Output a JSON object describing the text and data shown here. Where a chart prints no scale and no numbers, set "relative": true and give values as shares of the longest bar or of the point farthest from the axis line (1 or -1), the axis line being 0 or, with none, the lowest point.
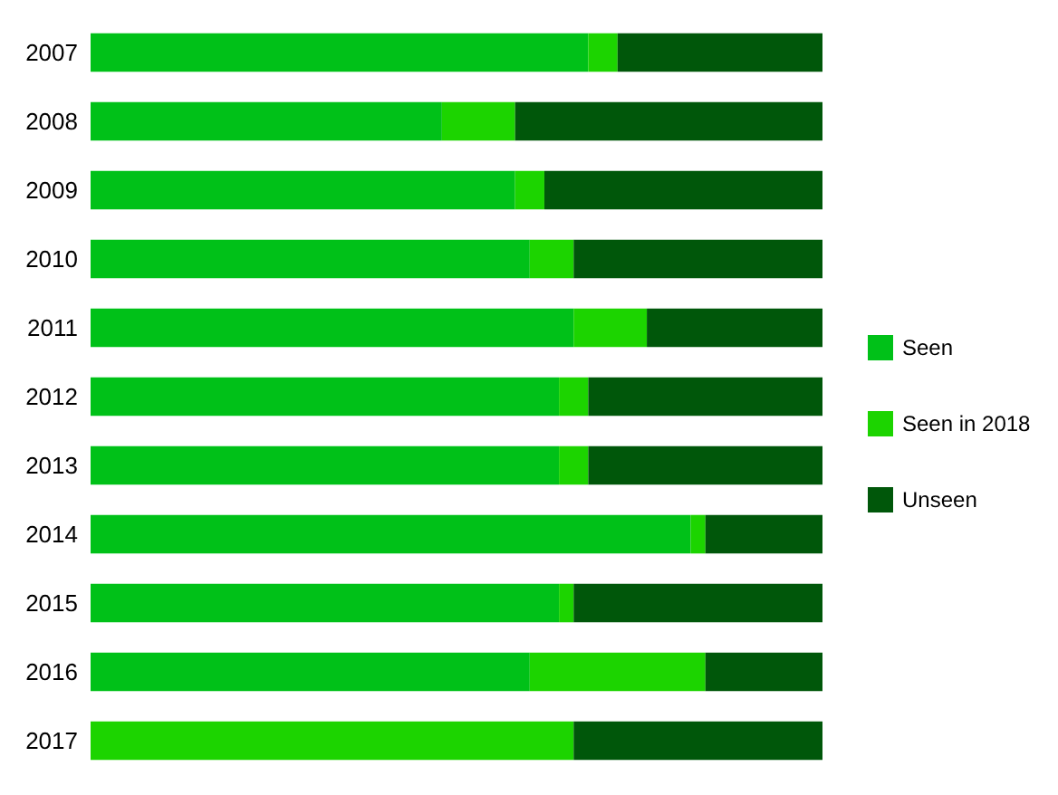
{
  "chart_data": {
    "type": "bar",
    "orientation": "horizontal",
    "stacked": true,
    "relative": true,
    "legend": "right",
    "categories": [
      "2007",
      "2008",
      "2009",
      "2010",
      "2011",
      "2012",
      "2013",
      "2014",
      "2015",
      "2016",
      "2017"
    ],
    "series": [
      {
        "name": "Seen",
        "color": "#00c118",
        "values": [
          0.68,
          0.48,
          0.58,
          0.6,
          0.66,
          0.64,
          0.64,
          0.82,
          0.64,
          0.6,
          0
        ]
      },
      {
        "name": "Seen in 2018",
        "color": "#1cd400",
        "values": [
          0.04,
          0.1,
          0.04,
          0.06,
          0.1,
          0.04,
          0.04,
          0.02,
          0.02,
          0.24,
          0.66
        ]
      },
      {
        "name": "Unseen",
        "color": "#00570a",
        "values": [
          0.28,
          0.42,
          0.38,
          0.34,
          0.24,
          0.32,
          0.32,
          0.16,
          0.34,
          0.16,
          0.34
        ]
      }
    ]
  }
}
